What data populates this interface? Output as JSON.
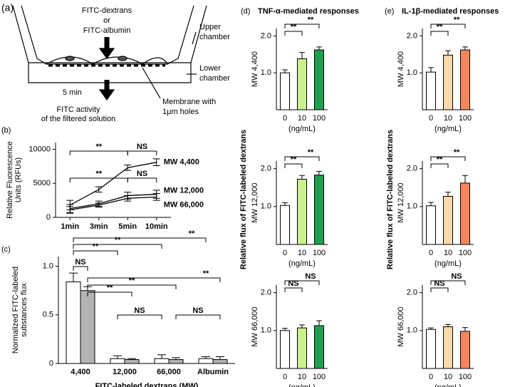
{
  "diagram": {
    "panel_label": "(a)",
    "texts": [
      "FITC-dextrans",
      "or",
      "FITC-albumin",
      "Upper",
      "chamber",
      "Lower",
      "chamber",
      "5 min",
      "Membrane with",
      "1μm holes",
      "FITC activity",
      "of the filtered solution"
    ]
  },
  "chart_data": [
    {
      "type": "line",
      "panel_label": "(b)",
      "ylabel": [
        "Relative Fluorescence",
        "Units (RFUs)"
      ],
      "categories": [
        "1min",
        "3min",
        "5min",
        "10min"
      ],
      "series": [
        {
          "name": "MW 4,400",
          "color": "#000000",
          "values": [
            1800,
            4100,
            7300,
            8100
          ],
          "errors": [
            700,
            400,
            400,
            500
          ]
        },
        {
          "name": "MW 12,000",
          "color": "#000000",
          "values": [
            1300,
            2000,
            3200,
            3400
          ],
          "errors": [
            600,
            400,
            500,
            600
          ]
        },
        {
          "name": "MW 66,000",
          "color": "#000000",
          "values": [
            1100,
            1800,
            2800,
            3000
          ],
          "errors": [
            500,
            300,
            400,
            500
          ]
        }
      ],
      "ylim": [
        0,
        11000
      ],
      "yticks": [
        0,
        5000,
        10000
      ],
      "annotations": [
        "**",
        "NS",
        "**",
        "NS"
      ]
    },
    {
      "type": "bar",
      "panel_label": "(c)",
      "ylabel": [
        "Normalized FITC-labeled",
        "substances flux"
      ],
      "xlabel": "FITC-labeled dextrans (MW)",
      "categories": [
        "4,400",
        "12,000",
        "66,000",
        "Albumin"
      ],
      "series": [
        {
          "color": "#ffffff",
          "values": [
            0.84,
            0.05,
            0.05,
            0.05
          ],
          "errors": [
            0.09,
            0.03,
            0.04,
            0.02
          ]
        },
        {
          "color": "#b3b3b3",
          "values": [
            0.75,
            0.04,
            0.04,
            0.04
          ],
          "errors": [
            0.04,
            0.01,
            0.02,
            0.03
          ]
        }
      ],
      "ylim": [
        0,
        1.1
      ],
      "yticks": [
        0,
        0.5,
        {
          "value": 1,
          "label": "1.0"
        }
      ],
      "annotations": [
        "NS",
        "**",
        "**",
        "**",
        "**",
        "**",
        "**",
        "NS",
        "NS"
      ]
    },
    {
      "type": "bar",
      "panel_label": "(d)",
      "title": "TNF-α-mediated responses",
      "shared_ylabel": "Relative flux of FITC-labeled dextrans",
      "ylabel": "MW 4,400",
      "xlabel": "(ng/mL)",
      "categories": [
        "0",
        "10",
        "100"
      ],
      "series": [
        {
          "colors": [
            "#ffffff",
            "#ccf08c",
            "#1fa050"
          ],
          "values": [
            1.0,
            1.38,
            1.62
          ],
          "errors": [
            0.08,
            0.17,
            0.08
          ]
        }
      ],
      "ylim": [
        0,
        2.2
      ],
      "yticks": [
        {
          "value": 1,
          "label": "1.0"
        },
        {
          "value": 2,
          "label": "2.0"
        }
      ],
      "annotations": [
        "**",
        "**"
      ]
    },
    {
      "type": "bar",
      "ylabel": "MW 12,000",
      "xlabel": "(ng/mL)",
      "categories": [
        "0",
        "10",
        "100"
      ],
      "series": [
        {
          "colors": [
            "#ffffff",
            "#ccf08c",
            "#1fa050"
          ],
          "values": [
            1.03,
            1.72,
            1.83
          ],
          "errors": [
            0.07,
            0.1,
            0.1
          ]
        }
      ],
      "ylim": [
        0,
        2.2
      ],
      "yticks": [
        {
          "value": 1,
          "label": "1.0"
        },
        {
          "value": 2,
          "label": "2.0"
        }
      ],
      "annotations": [
        "**",
        "**"
      ]
    },
    {
      "type": "bar",
      "ylabel": "MW 66,000",
      "xlabel": "(ng/mL)",
      "categories": [
        "0",
        "10",
        "100"
      ],
      "series": [
        {
          "colors": [
            "#ffffff",
            "#ccf08c",
            "#1fa050"
          ],
          "values": [
            1.0,
            1.07,
            1.13
          ],
          "errors": [
            0.06,
            0.08,
            0.13
          ]
        }
      ],
      "ylim": [
        0,
        2.2
      ],
      "yticks": [
        {
          "value": 1,
          "label": "1.0"
        },
        {
          "value": 2,
          "label": "2.0"
        }
      ],
      "annotations": [
        "NS",
        "NS"
      ]
    },
    {
      "type": "bar",
      "panel_label": "(e)",
      "title": "IL-1β-mediated responses",
      "shared_ylabel": "Relative flux of FITC-labeled dextrans",
      "ylabel": "MW 4,400",
      "xlabel": "(ng/mL)",
      "categories": [
        "0",
        "10",
        "100"
      ],
      "series": [
        {
          "colors": [
            "#ffffff",
            "#fbd9a8",
            "#f5875a"
          ],
          "values": [
            1.02,
            1.48,
            1.62
          ],
          "errors": [
            0.12,
            0.12,
            0.08
          ]
        }
      ],
      "ylim": [
        0,
        2.2
      ],
      "yticks": [
        {
          "value": 1,
          "label": "1.0"
        },
        {
          "value": 2,
          "label": "2.0"
        }
      ],
      "annotations": [
        "**",
        "**"
      ]
    },
    {
      "type": "bar",
      "ylabel": "MW 12,000",
      "xlabel": "(ng/mL)",
      "categories": [
        "0",
        "10",
        "100"
      ],
      "series": [
        {
          "colors": [
            "#ffffff",
            "#fbd9a8",
            "#f5875a"
          ],
          "values": [
            1.02,
            1.27,
            1.62
          ],
          "errors": [
            0.09,
            0.11,
            0.2
          ]
        }
      ],
      "ylim": [
        0,
        2.2
      ],
      "yticks": [
        {
          "value": 1,
          "label": "1.0"
        },
        {
          "value": 2,
          "label": "2.0"
        }
      ],
      "annotations": [
        "**",
        "**"
      ]
    },
    {
      "type": "bar",
      "ylabel": "MW 66,000",
      "xlabel": "(ng/mL)",
      "categories": [
        "0",
        "10",
        "100"
      ],
      "series": [
        {
          "colors": [
            "#ffffff",
            "#fbd9a8",
            "#f5875a"
          ],
          "values": [
            1.03,
            1.1,
            0.98
          ],
          "errors": [
            0.04,
            0.06,
            0.1
          ]
        }
      ],
      "ylim": [
        0,
        2.2
      ],
      "yticks": [
        {
          "value": 1,
          "label": "1.0"
        },
        {
          "value": 2,
          "label": "2.0"
        }
      ],
      "annotations": [
        "NS",
        "NS"
      ]
    }
  ]
}
